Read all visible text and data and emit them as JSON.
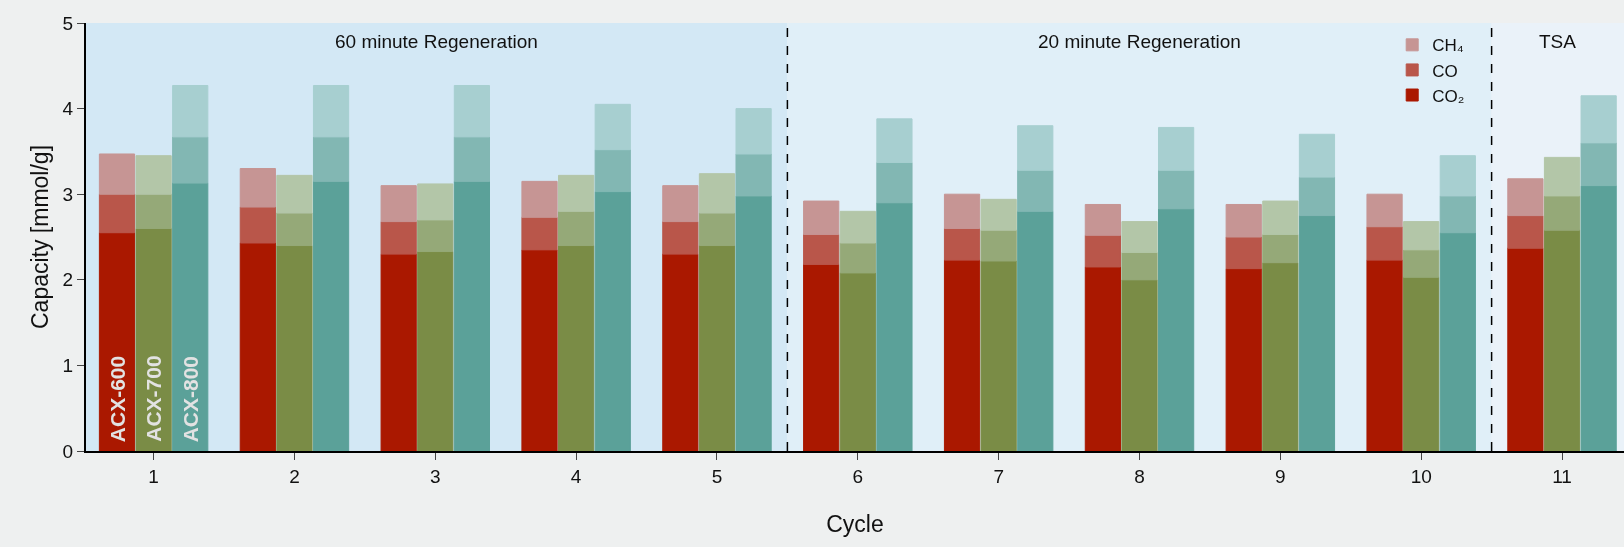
{
  "chart_data": {
    "type": "bar",
    "stacked": true,
    "xlabel": "Cycle",
    "ylabel": "Capacity [mmol/g]",
    "x": [
      0.74,
      1,
      1.26,
      1.74,
      2,
      2.26,
      2.74,
      3,
      3.26,
      3.74,
      4,
      4.26,
      4.74,
      5,
      5.26,
      5.74,
      6,
      6.26,
      6.74,
      7,
      7.26,
      7.74,
      8,
      8.26,
      8.74,
      9,
      9.26,
      9.74,
      10,
      10.26,
      10.74,
      11,
      11.26
    ],
    "series": [
      {
        "name": "CO₂",
        "colors": [
          "#aa1800",
          "#7a8c46",
          "#5ba199",
          "#aa1800",
          "#7a8c46",
          "#5ba199",
          "#aa1800",
          "#7a8c46",
          "#5ba199",
          "#aa1800",
          "#7a8c46",
          "#5ba199",
          "#aa1800",
          "#7a8c46",
          "#5ba199",
          "#aa1800",
          "#7a8c46",
          "#5ba199",
          "#aa1800",
          "#7a8c46",
          "#5ba199",
          "#aa1800",
          "#7a8c46",
          "#5ba199",
          "#aa1800",
          "#7a8c46",
          "#5ba199",
          "#aa1800",
          "#7a8c46",
          "#5ba199",
          "#aa1800",
          "#7a8c46",
          "#5ba199"
        ],
        "values": [
          2.55,
          2.6,
          3.13,
          2.43,
          2.4,
          3.15,
          2.3,
          2.33,
          3.15,
          2.35,
          2.4,
          3.03,
          2.3,
          2.4,
          2.98,
          2.18,
          2.08,
          2.9,
          2.23,
          2.22,
          2.8,
          2.15,
          2.0,
          2.83,
          2.13,
          2.2,
          2.75,
          2.23,
          2.03,
          2.55,
          2.37,
          2.58,
          3.1
        ]
      },
      {
        "name": "CO",
        "colors": [
          "#b9564a",
          "#95a978",
          "#82b7b3",
          "#b9564a",
          "#95a978",
          "#82b7b3",
          "#b9564a",
          "#95a978",
          "#82b7b3",
          "#b9564a",
          "#95a978",
          "#82b7b3",
          "#b9564a",
          "#95a978",
          "#82b7b3",
          "#b9564a",
          "#95a978",
          "#82b7b3",
          "#b9564a",
          "#95a978",
          "#82b7b3",
          "#b9564a",
          "#95a978",
          "#82b7b3",
          "#b9564a",
          "#95a978",
          "#82b7b3",
          "#b9564a",
          "#95a978",
          "#82b7b3",
          "#b9564a",
          "#95a978",
          "#82b7b3"
        ],
        "values": [
          0.45,
          0.4,
          0.54,
          0.42,
          0.38,
          0.52,
          0.38,
          0.37,
          0.52,
          0.38,
          0.4,
          0.49,
          0.38,
          0.38,
          0.49,
          0.35,
          0.35,
          0.47,
          0.37,
          0.36,
          0.48,
          0.37,
          0.32,
          0.45,
          0.37,
          0.33,
          0.45,
          0.39,
          0.32,
          0.43,
          0.38,
          0.4,
          0.5
        ]
      },
      {
        "name": "CH₄",
        "colors": [
          "#c69594",
          "#b3c6a8",
          "#a7cfd0",
          "#c69594",
          "#b3c6a8",
          "#a7cfd0",
          "#c69594",
          "#b3c6a8",
          "#a7cfd0",
          "#c69594",
          "#b3c6a8",
          "#a7cfd0",
          "#c69594",
          "#b3c6a8",
          "#a7cfd0",
          "#c69594",
          "#b3c6a8",
          "#a7cfd0",
          "#c69594",
          "#b3c6a8",
          "#a7cfd0",
          "#c69594",
          "#b3c6a8",
          "#a7cfd0",
          "#c69594",
          "#b3c6a8",
          "#a7cfd0",
          "#c69594",
          "#b3c6a8",
          "#a7cfd0",
          "#c69594",
          "#b3c6a8",
          "#a7cfd0"
        ],
        "values": [
          0.47,
          0.45,
          0.6,
          0.45,
          0.44,
          0.6,
          0.42,
          0.42,
          0.6,
          0.42,
          0.42,
          0.53,
          0.42,
          0.46,
          0.53,
          0.39,
          0.37,
          0.51,
          0.4,
          0.36,
          0.52,
          0.36,
          0.36,
          0.5,
          0.38,
          0.39,
          0.5,
          0.38,
          0.33,
          0.47,
          0.43,
          0.45,
          0.55
        ]
      }
    ],
    "annotations": [
      "ACX-600",
      "ACX-700",
      "ACX-800"
    ],
    "xlim": [
      0.52,
      11.44
    ],
    "xticks": [
      1,
      2,
      3,
      4,
      5,
      6,
      7,
      8,
      9,
      10,
      11
    ],
    "ylim": [
      0,
      5
    ],
    "yticks": [
      0,
      1,
      2,
      3,
      4,
      5
    ],
    "bands": [
      {
        "axis": "x",
        "from": 0.52,
        "to": 5.5,
        "label": "60 minute Regeneration",
        "color": "#d3e8f5"
      },
      {
        "axis": "x",
        "from": 5.5,
        "to": 10.5,
        "label": "20 minute Regeneration",
        "color": "#e0eff8"
      },
      {
        "axis": "x",
        "from": 10.5,
        "to": 11.44,
        "label": "TSA",
        "color": "#eaf2f9"
      }
    ],
    "ref_lines": [
      {
        "axis": "x",
        "value": 5.5,
        "line_style": "dashed",
        "color": "#000000"
      },
      {
        "axis": "x",
        "value": 10.5,
        "line_style": "dashed",
        "color": "#000000"
      }
    ],
    "grid": false,
    "legend": "top right"
  }
}
